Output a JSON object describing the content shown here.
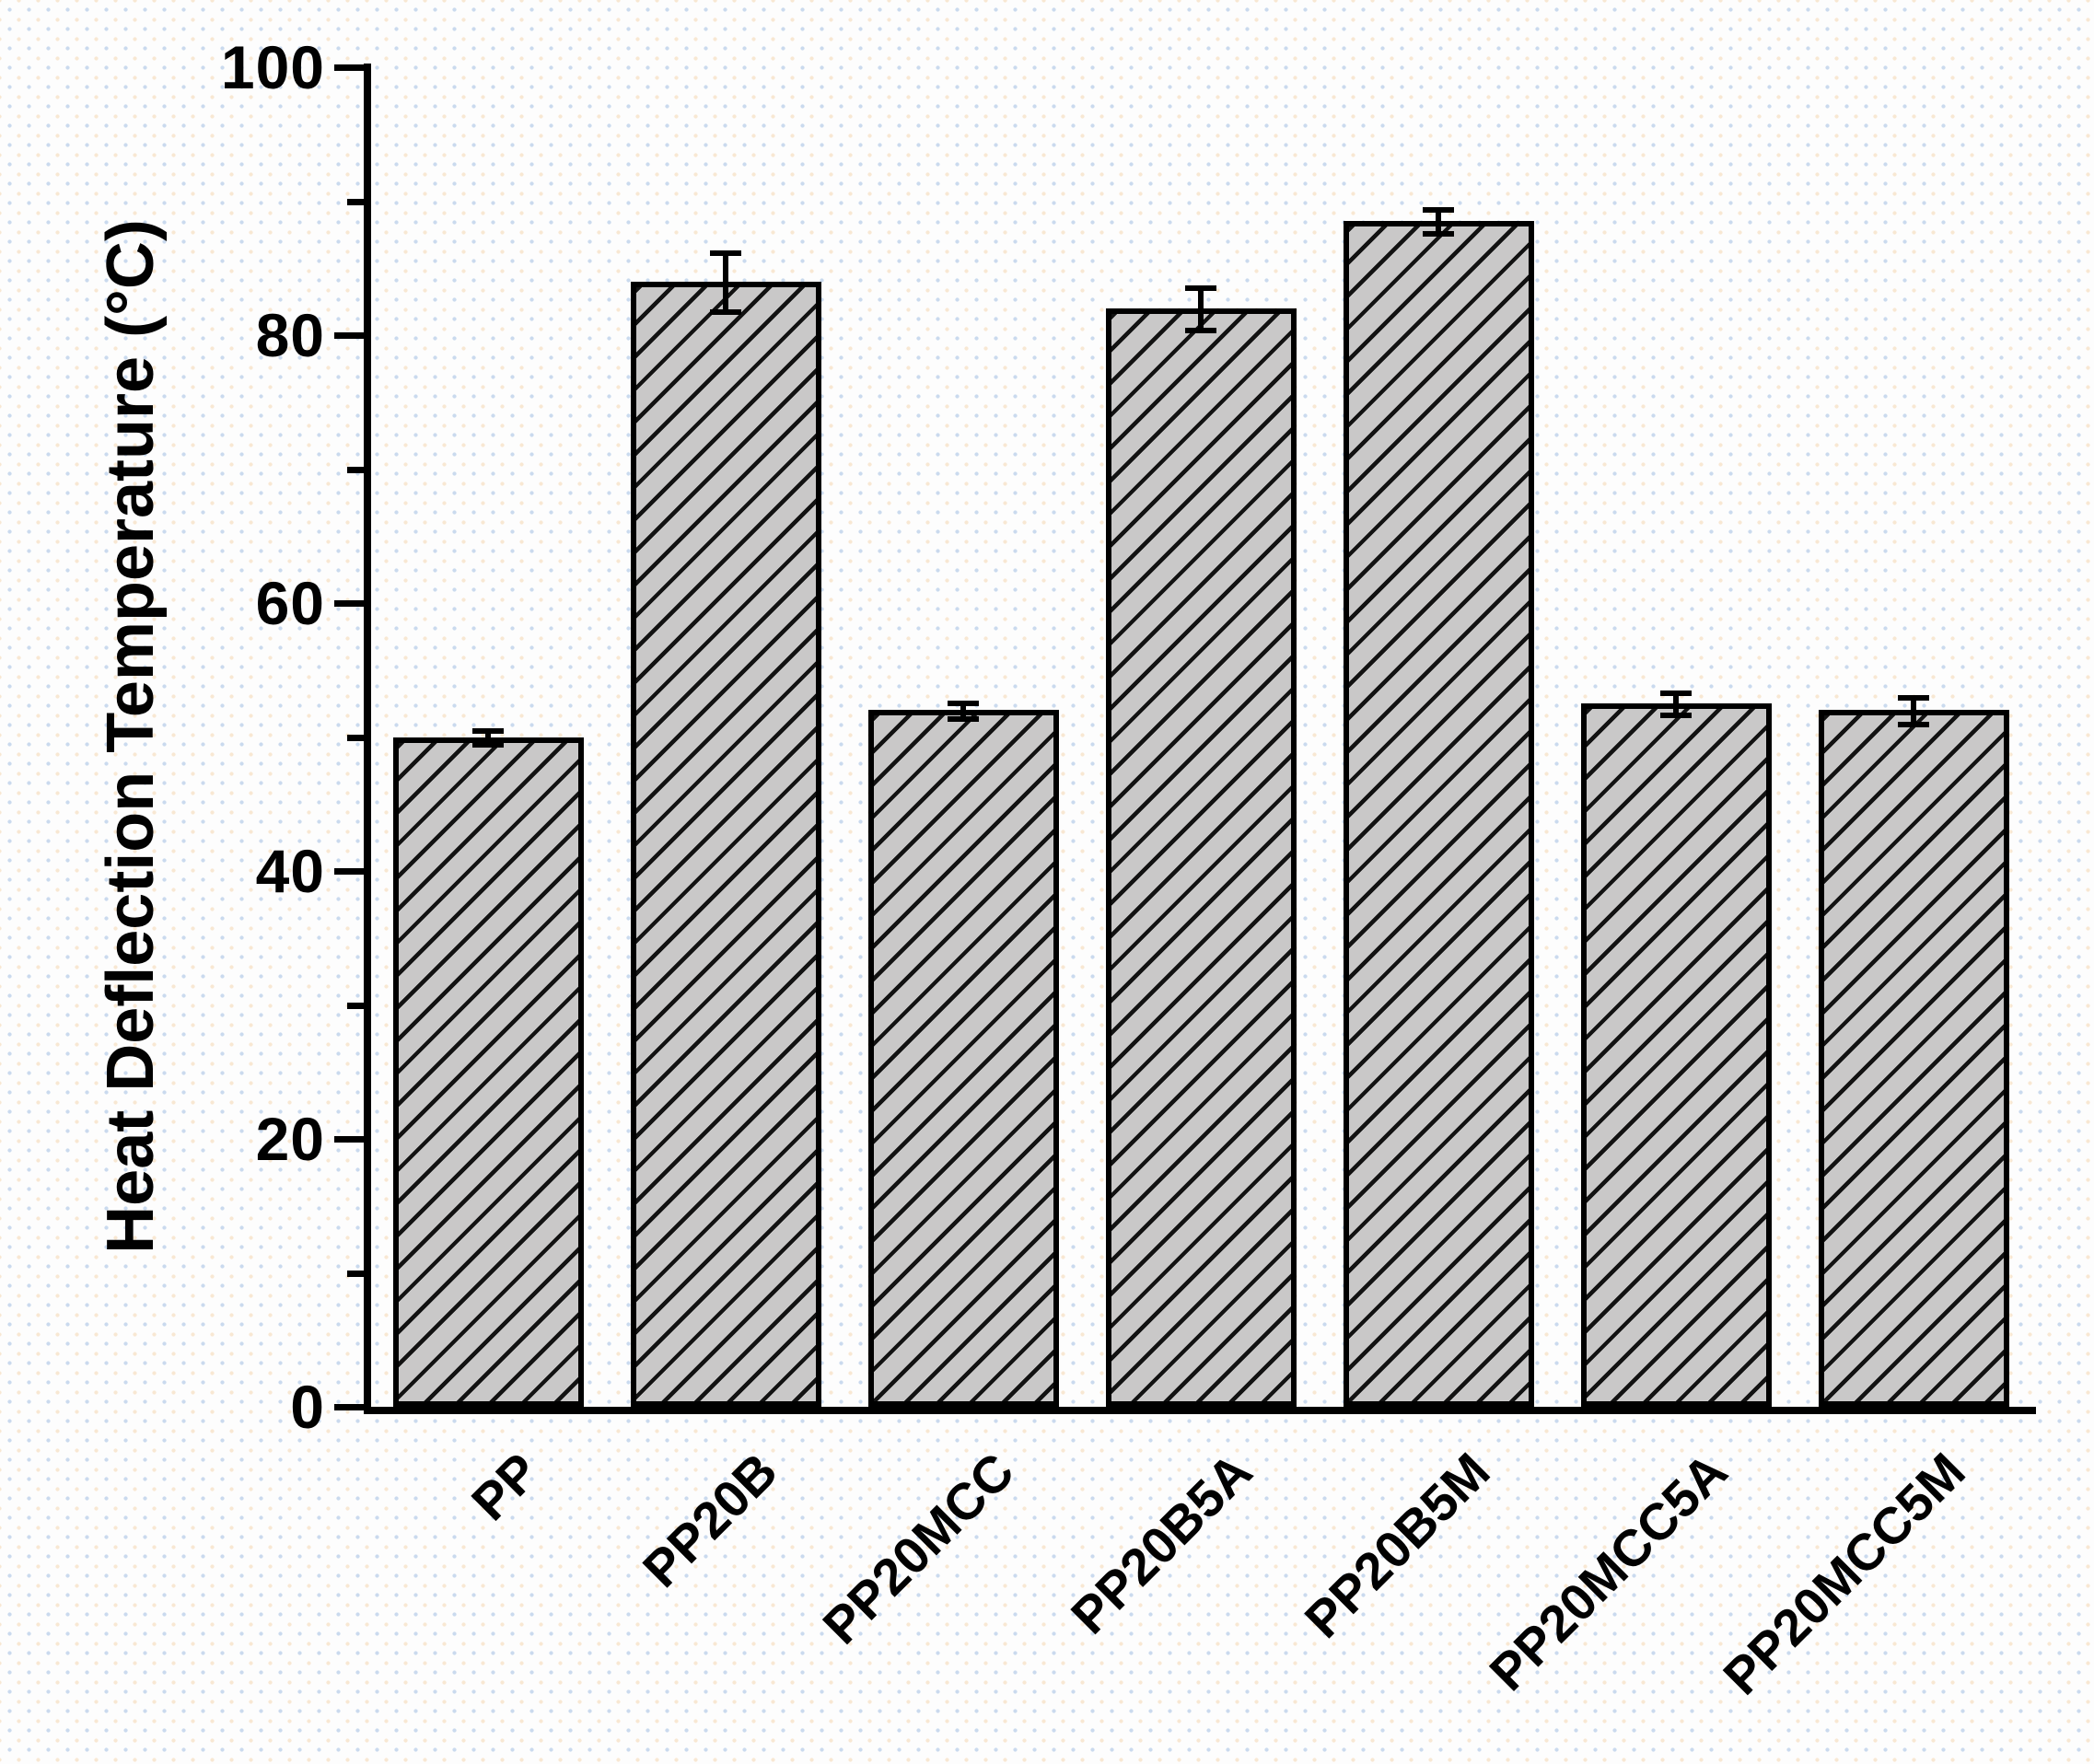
{
  "chart_data": {
    "type": "bar",
    "title": "",
    "xlabel": "",
    "ylabel": "Heat Deflection Temperature (°C)",
    "ylim": [
      0,
      100
    ],
    "yticks": [
      0,
      20,
      40,
      60,
      80,
      100
    ],
    "minor_ticks": [
      10,
      30,
      50,
      70,
      90
    ],
    "grid": false,
    "legend": false,
    "categories": [
      "PP",
      "PP20B",
      "PP20MCC",
      "PP20B5A",
      "PP20B5M",
      "PP20MCC5A",
      "PP20MCC5M"
    ],
    "series": [
      {
        "name": "Heat Deflection Temperature",
        "values": [
          50,
          84,
          52,
          82,
          88.5,
          52.5,
          52
        ],
        "errors": [
          0.5,
          2.2,
          0.6,
          1.6,
          0.9,
          0.8,
          1.0
        ]
      }
    ],
    "style": {
      "bar_fill": "#c9c8c8",
      "bar_edge": "#000000",
      "hatch": "forward-diagonal",
      "error_color": "#000000",
      "background_dots": [
        "#8cafdc",
        "#f2cda0"
      ]
    }
  }
}
